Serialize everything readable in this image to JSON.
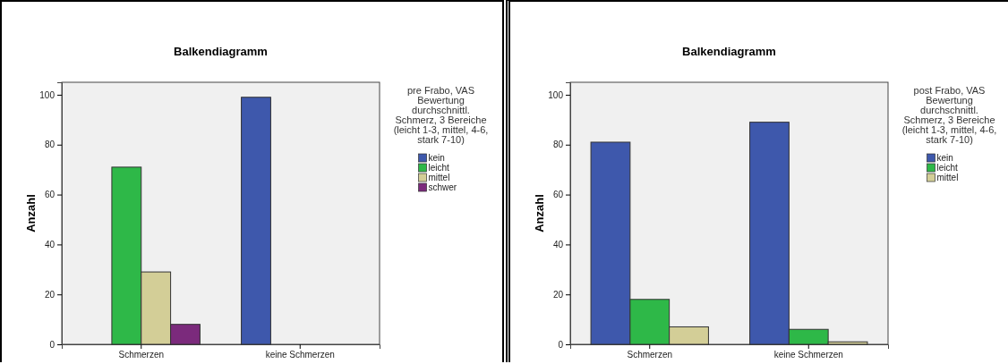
{
  "chart_data": [
    {
      "type": "bar",
      "title": "Balkendiagramm",
      "ylabel": "Anzahl",
      "legend_title": "pre Frabo, VAS Bewertung durchschnittl. Schmerz, 3 Bereiche (leicht 1-3, mittel, 4-6, stark 7-10)",
      "categories": [
        "Schmerzen",
        "keine Schmerzen"
      ],
      "series": [
        {
          "name": "kein",
          "color": "#3e58ac",
          "values": [
            0,
            99
          ]
        },
        {
          "name": "leicht",
          "color": "#2eb848",
          "values": [
            71,
            0
          ]
        },
        {
          "name": "mittel",
          "color": "#d3ce97",
          "values": [
            29,
            0
          ]
        },
        {
          "name": "schwer",
          "color": "#7b2a7c",
          "values": [
            8,
            0
          ]
        }
      ],
      "ylim": [
        0,
        105
      ],
      "yticks": [
        0,
        20,
        40,
        60,
        80,
        100
      ],
      "legend": "top right",
      "grid": false
    },
    {
      "type": "bar",
      "title": "Balkendiagramm",
      "ylabel": "Anzahl",
      "legend_title": "post Frabo, VAS Bewertung durchschnittl. Schmerz, 3 Bereiche (leicht 1-3, mittel, 4-6, stark 7-10)",
      "categories": [
        "Schmerzen",
        "keine Schmerzen"
      ],
      "series": [
        {
          "name": "kein",
          "color": "#3e58ac",
          "values": [
            81,
            89
          ]
        },
        {
          "name": "leicht",
          "color": "#2eb848",
          "values": [
            18,
            6
          ]
        },
        {
          "name": "mittel",
          "color": "#d3ce97",
          "values": [
            7,
            1
          ]
        }
      ],
      "ylim": [
        0,
        105
      ],
      "yticks": [
        0,
        20,
        40,
        60,
        80,
        100
      ],
      "legend": "top right",
      "grid": false
    }
  ]
}
